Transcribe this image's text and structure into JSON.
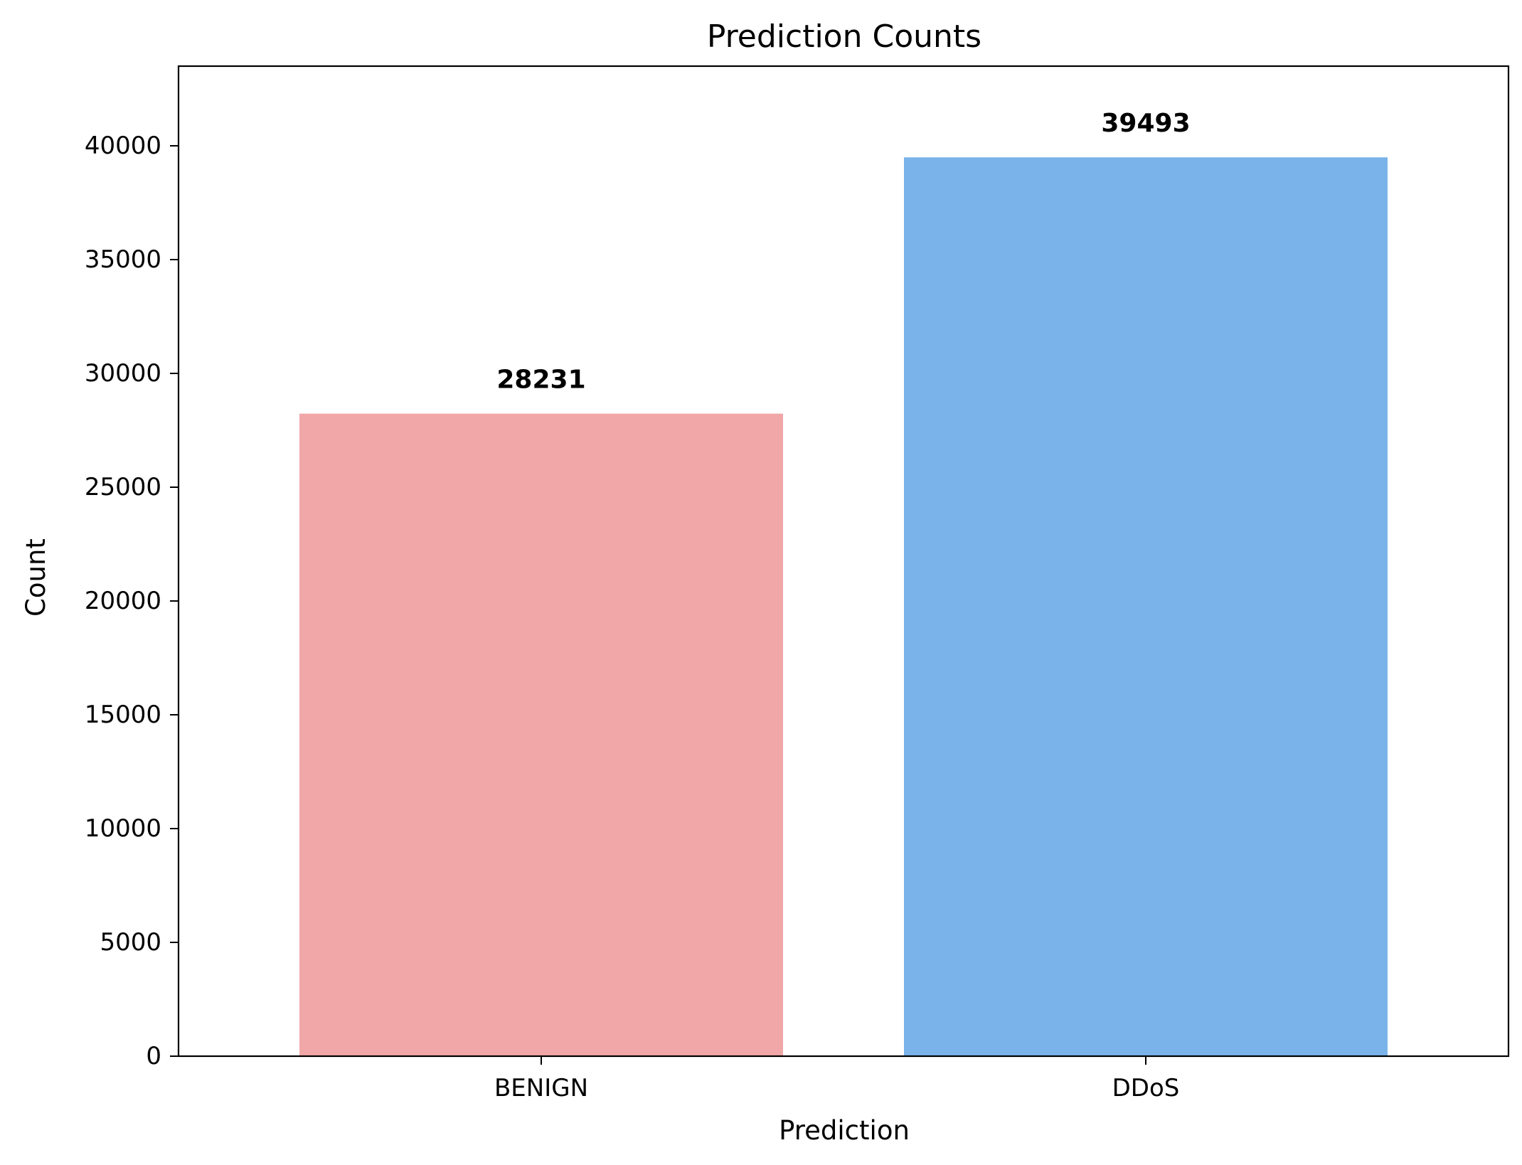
{
  "chart_data": {
    "type": "bar",
    "title": "Prediction Counts",
    "xlabel": "Prediction",
    "ylabel": "Count",
    "categories": [
      "BENIGN",
      "DDoS"
    ],
    "values": [
      28231,
      39493
    ],
    "data_labels": [
      "28231",
      "39493"
    ],
    "colors": [
      "#f1a7a7",
      "#7ab3e9"
    ],
    "ylim": [
      0,
      43500
    ],
    "yticks": [
      0,
      5000,
      10000,
      15000,
      20000,
      25000,
      30000,
      35000,
      40000
    ],
    "ytick_labels": [
      "0",
      "5000",
      "10000",
      "15000",
      "20000",
      "25000",
      "30000",
      "35000",
      "40000"
    ],
    "grid": false,
    "legend": "none"
  }
}
